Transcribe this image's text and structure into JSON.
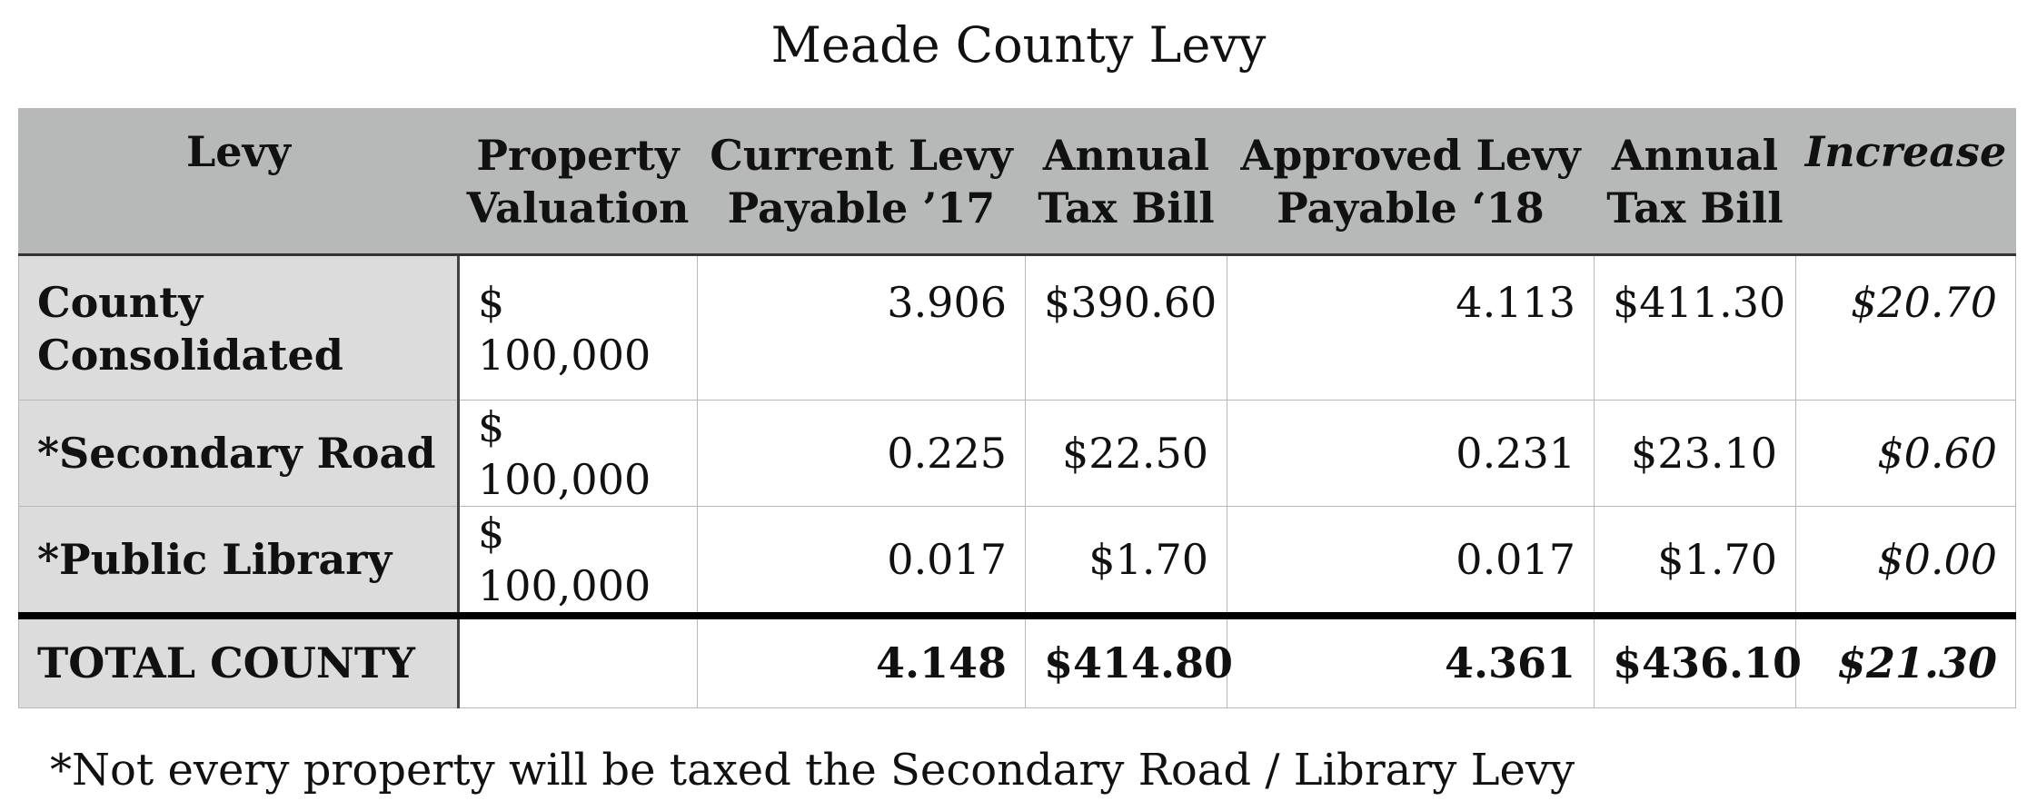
{
  "title": "Meade County Levy",
  "table": {
    "headers": [
      {
        "line1": "Levy",
        "line2": ""
      },
      {
        "line1": "Property",
        "line2": "Valuation"
      },
      {
        "line1": "Current Levy",
        "line2": "Payable ’17"
      },
      {
        "line1": "Annual",
        "line2": "Tax Bill"
      },
      {
        "line1": "Approved Levy",
        "line2": "Payable ‘18"
      },
      {
        "line1": "Annual",
        "line2": "Tax Bill"
      },
      {
        "line1": "Increase",
        "line2": ""
      }
    ],
    "rows": [
      {
        "levy_line1": "County",
        "levy_line2": "Consolidated",
        "valuation_symbol": "$",
        "valuation": "100,000",
        "current_levy": "3.906",
        "current_bill": "$390.60",
        "approved_levy": "4.113",
        "approved_bill": "$411.30",
        "increase": "$20.70"
      },
      {
        "levy_line1": "*Secondary Road",
        "levy_line2": "",
        "valuation_symbol": "$",
        "valuation": "100,000",
        "current_levy": "0.225",
        "current_bill": "$22.50",
        "approved_levy": "0.231",
        "approved_bill": "$23.10",
        "increase": "$0.60"
      },
      {
        "levy_line1": "*Public Library",
        "levy_line2": "",
        "valuation_symbol": "$",
        "valuation": "100,000",
        "current_levy": "0.017",
        "current_bill": "$1.70",
        "approved_levy": "0.017",
        "approved_bill": "$1.70",
        "increase": "$0.00"
      }
    ],
    "total": {
      "label": "TOTAL COUNTY",
      "valuation": "",
      "current_levy": "4.148",
      "current_bill": "$414.80",
      "approved_levy": "4.361",
      "approved_bill": "$436.10",
      "increase": "$21.30"
    }
  },
  "footnote": "*Not every property will be taxed the Secondary Road / Library Levy",
  "colors": {
    "header_bg": "#b7b9b8",
    "label_bg": "#dcdcdc",
    "rule": "#000000"
  }
}
